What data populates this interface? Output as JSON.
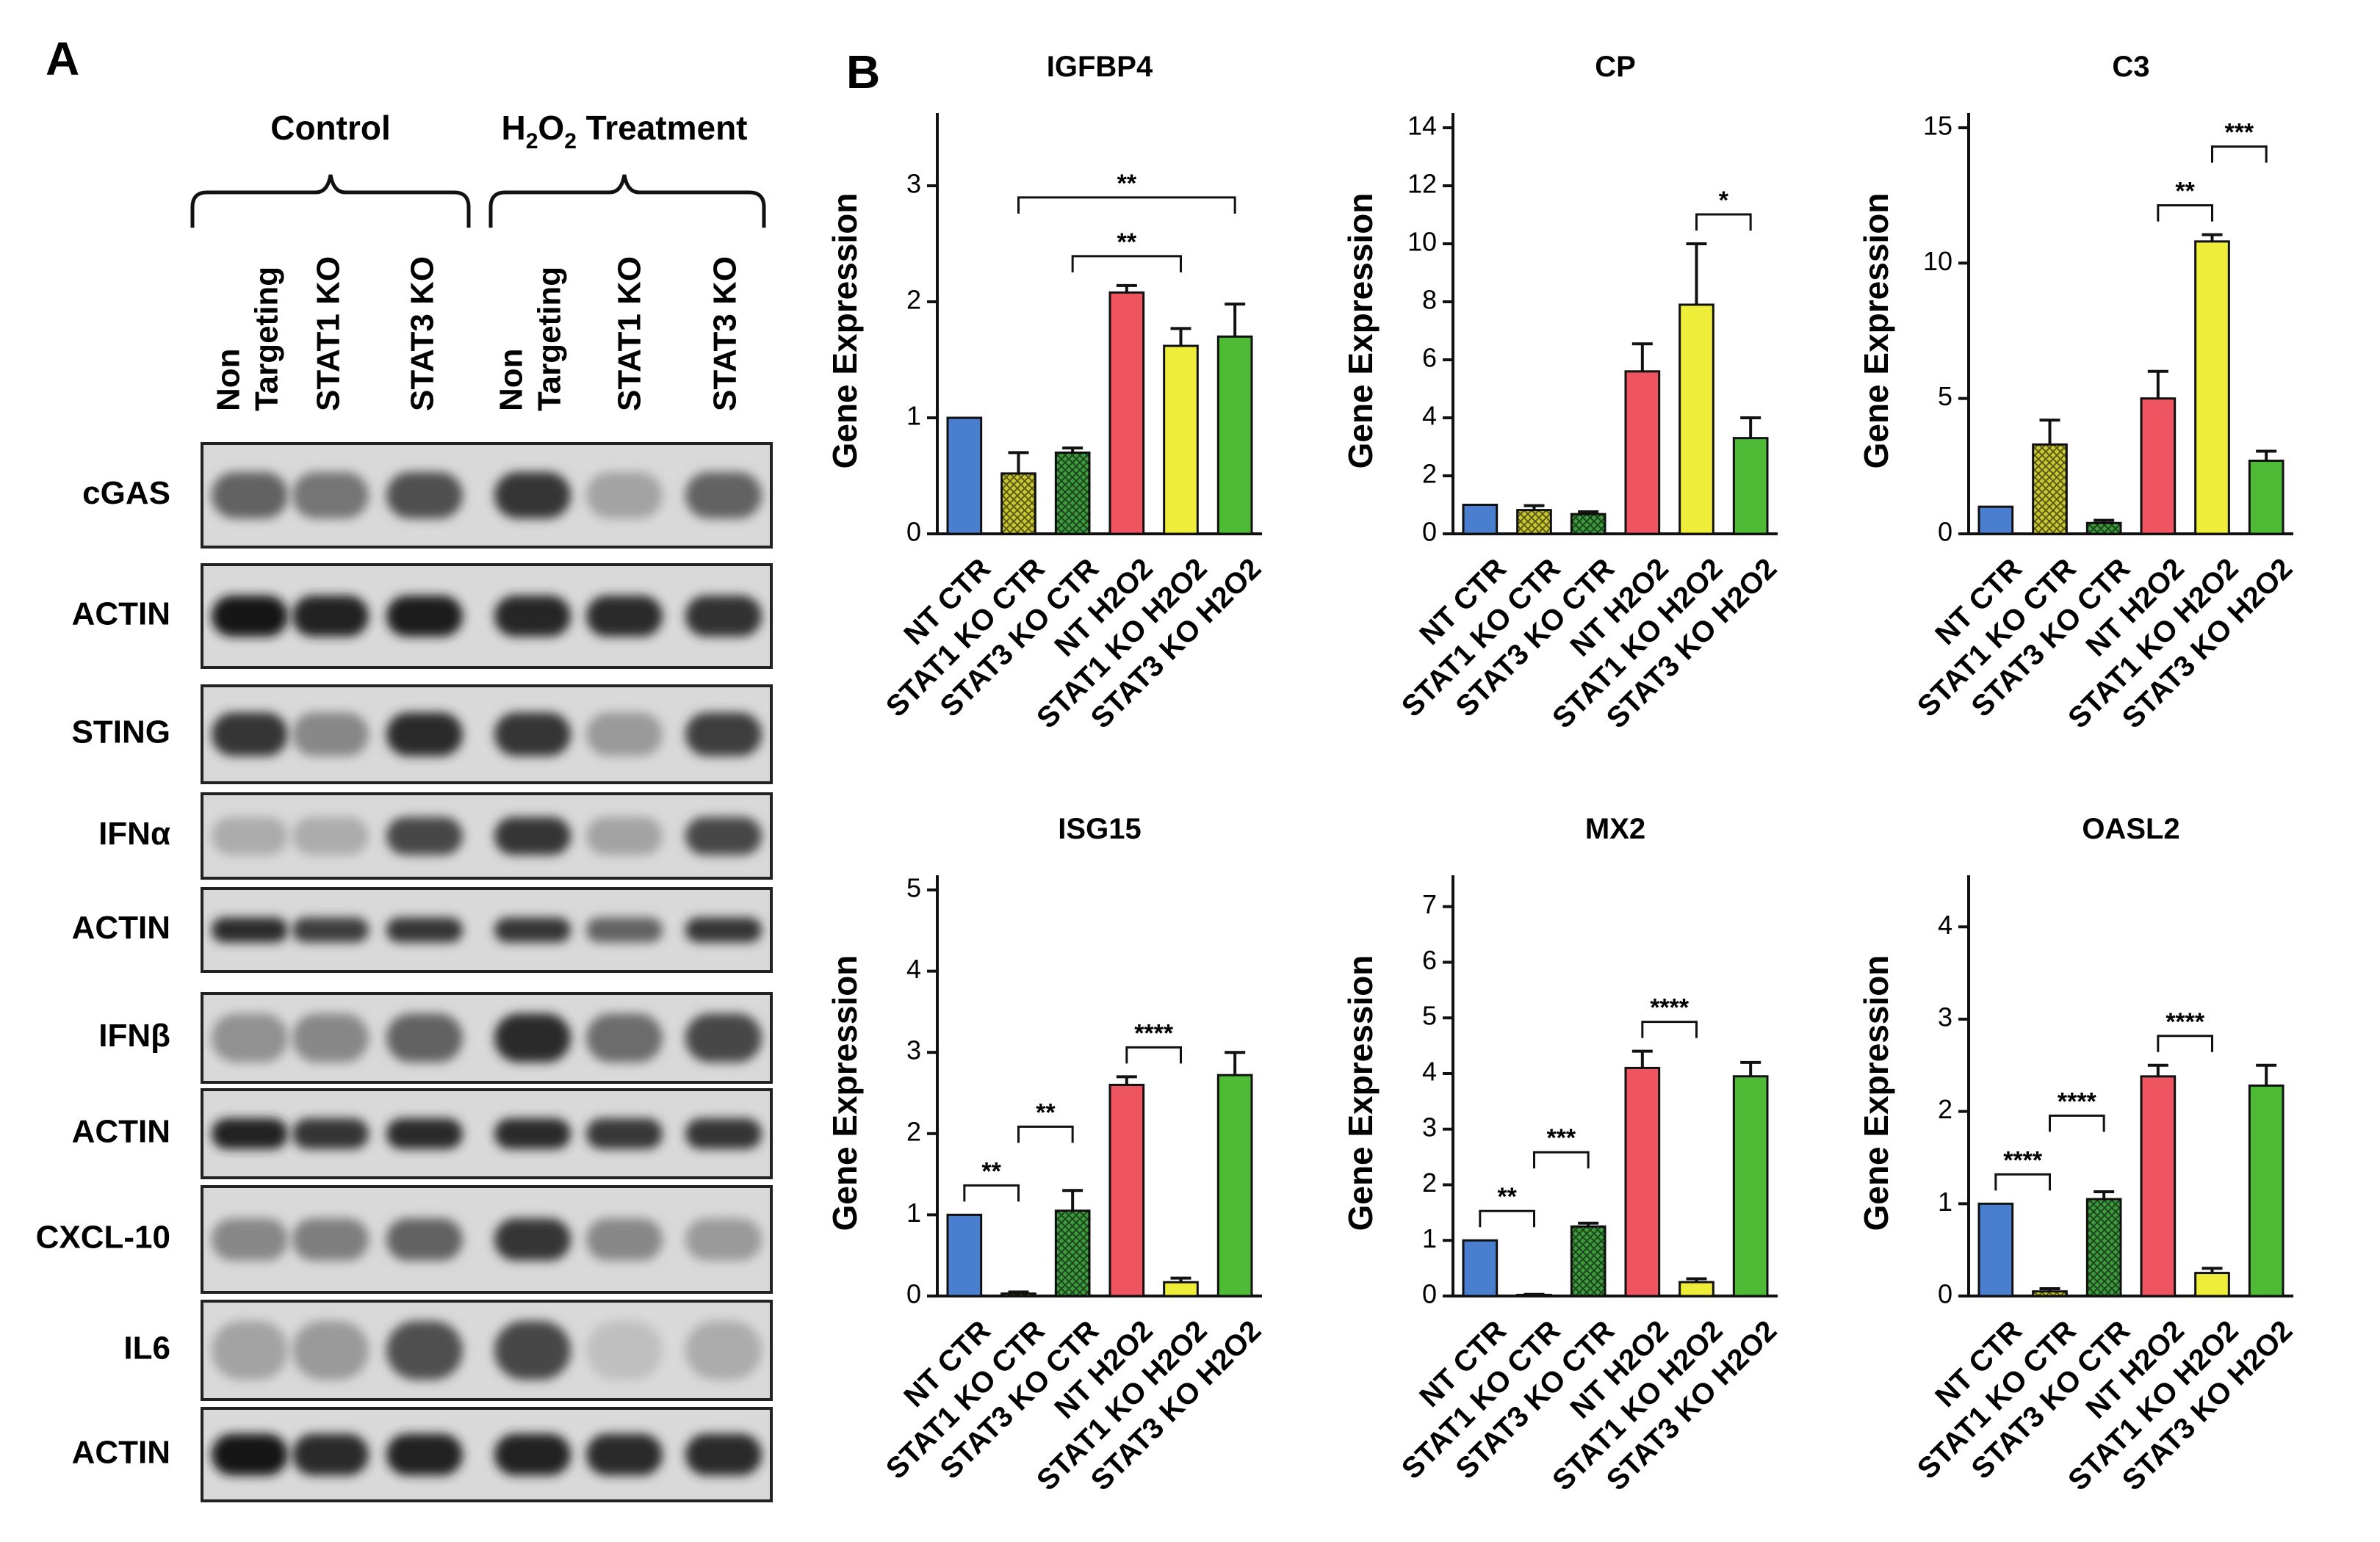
{
  "panel_a": {
    "letter": "A",
    "groups": [
      {
        "label": "Control"
      },
      {
        "label_main": "H",
        "label_sub": "2",
        "label_mid": "O",
        "label_sub2": "2",
        "label_tail": " Treatment"
      }
    ],
    "lanes": [
      [
        "Non",
        "Targeting"
      ],
      [
        "STAT1 KO"
      ],
      [
        "STAT3 KO"
      ],
      [
        "Non",
        "Targeting"
      ],
      [
        "STAT1 KO"
      ],
      [
        "STAT3 KO"
      ]
    ],
    "blots": [
      {
        "label": "cGAS",
        "intensity": [
          0.55,
          0.45,
          0.65,
          0.8,
          0.2,
          0.55
        ],
        "thickness": 0.45
      },
      {
        "label": "ACTIN",
        "intensity": [
          0.95,
          0.9,
          0.92,
          0.88,
          0.85,
          0.82
        ],
        "thickness": 0.4
      },
      {
        "label": "STING",
        "intensity": [
          0.8,
          0.35,
          0.85,
          0.8,
          0.25,
          0.75
        ],
        "thickness": 0.45
      },
      {
        "label": "IFNα",
        "intensity": [
          0.15,
          0.15,
          0.7,
          0.8,
          0.2,
          0.7
        ],
        "thickness": 0.45
      },
      {
        "label": "ACTIN",
        "intensity": [
          0.85,
          0.75,
          0.8,
          0.8,
          0.55,
          0.8
        ],
        "thickness": 0.3
      },
      {
        "label": "IFNβ",
        "intensity": [
          0.3,
          0.35,
          0.55,
          0.85,
          0.5,
          0.7
        ],
        "thickness": 0.55
      },
      {
        "label": "ACTIN",
        "intensity": [
          0.9,
          0.8,
          0.85,
          0.85,
          0.78,
          0.8
        ],
        "thickness": 0.35
      },
      {
        "label": "CXCL-10",
        "intensity": [
          0.35,
          0.4,
          0.55,
          0.8,
          0.35,
          0.25
        ],
        "thickness": 0.4
      },
      {
        "label": "IL6",
        "intensity": [
          0.2,
          0.25,
          0.65,
          0.7,
          0.05,
          0.15
        ],
        "thickness": 0.6
      },
      {
        "label": "ACTIN",
        "intensity": [
          0.95,
          0.85,
          0.9,
          0.9,
          0.85,
          0.85
        ],
        "thickness": 0.45
      }
    ]
  },
  "panel_b": {
    "letter": "B",
    "ylabel": "Gene Expression",
    "categories": [
      "NT CTR",
      "STAT1 KO CTR",
      "STAT3 KO CTR",
      "NT H2O2",
      "STAT1 KO H2O2",
      "STAT3 KO H2O2"
    ],
    "colors": [
      "#4a7fd0",
      "#c9c832",
      "#3e9a3e",
      "#ee5560",
      "#eeee3a",
      "#4fba36"
    ],
    "hatched": [
      false,
      true,
      true,
      false,
      false,
      false
    ],
    "grid": false,
    "legend": "none"
  },
  "chart_data": [
    {
      "type": "bar",
      "title": "IGFBP4",
      "ylabel": "Gene Expression",
      "categories": [
        "NT CTR",
        "STAT1 KO CTR",
        "STAT3 KO CTR",
        "NT H2O2",
        "STAT1 KO H2O2",
        "STAT3 KO H2O2"
      ],
      "values": [
        1.0,
        0.52,
        0.7,
        2.08,
        1.62,
        1.7
      ],
      "errors": [
        0,
        0.18,
        0.04,
        0.06,
        0.15,
        0.28
      ],
      "ylim": [
        0,
        3.5
      ],
      "yticks": [
        0,
        1,
        2,
        3
      ],
      "annotations": [
        {
          "from": 2,
          "to": 4,
          "label": "**"
        },
        {
          "from": 1,
          "to": 5,
          "label": "**"
        }
      ]
    },
    {
      "type": "bar",
      "title": "CP",
      "ylabel": "Gene Expression",
      "categories": [
        "NT CTR",
        "STAT1 KO CTR",
        "STAT3 KO CTR",
        "NT H2O2",
        "STAT1 KO H2O2",
        "STAT3 KO H2O2"
      ],
      "values": [
        1.0,
        0.82,
        0.68,
        5.6,
        7.9,
        3.3
      ],
      "errors": [
        0,
        0.15,
        0.08,
        0.95,
        2.1,
        0.7
      ],
      "ylim": [
        0,
        14
      ],
      "yticks": [
        0,
        2,
        4,
        6,
        8,
        10,
        12,
        14
      ],
      "annotations": [
        {
          "from": 4,
          "to": 5,
          "label": "*"
        }
      ]
    },
    {
      "type": "bar",
      "title": "C3",
      "ylabel": "Gene Expression",
      "categories": [
        "NT CTR",
        "STAT1 KO CTR",
        "STAT3 KO CTR",
        "NT H2O2",
        "STAT1 KO H2O2",
        "STAT3 KO H2O2"
      ],
      "values": [
        1.0,
        3.3,
        0.4,
        5.0,
        10.8,
        2.7
      ],
      "errors": [
        0,
        0.9,
        0.1,
        1.0,
        0.25,
        0.35
      ],
      "ylim": [
        0,
        15
      ],
      "yticks": [
        0,
        5,
        10,
        15
      ],
      "annotations": [
        {
          "from": 3,
          "to": 4,
          "label": "**"
        },
        {
          "from": 4,
          "to": 5,
          "label": "***"
        }
      ]
    },
    {
      "type": "bar",
      "title": "ISG15",
      "ylabel": "Gene Expression",
      "categories": [
        "NT CTR",
        "STAT1 KO CTR",
        "STAT3 KO CTR",
        "NT H2O2",
        "STAT1 KO H2O2",
        "STAT3 KO H2O2"
      ],
      "values": [
        1.0,
        0.03,
        1.05,
        2.6,
        0.17,
        2.72
      ],
      "errors": [
        0,
        0.02,
        0.25,
        0.1,
        0.05,
        0.28
      ],
      "ylim": [
        0,
        5
      ],
      "yticks": [
        0,
        1,
        2,
        3,
        4,
        5
      ],
      "annotations": [
        {
          "from": 0,
          "to": 1,
          "label": "**"
        },
        {
          "from": 1,
          "to": 2,
          "label": "**"
        },
        {
          "from": 3,
          "to": 4,
          "label": "****"
        }
      ]
    },
    {
      "type": "bar",
      "title": "MX2",
      "ylabel": "Gene Expression",
      "categories": [
        "NT CTR",
        "STAT1 KO CTR",
        "STAT3 KO CTR",
        "NT H2O2",
        "STAT1 KO H2O2",
        "STAT3 KO H2O2"
      ],
      "values": [
        1.0,
        0.02,
        1.25,
        4.1,
        0.25,
        3.95
      ],
      "errors": [
        0,
        0.01,
        0.06,
        0.3,
        0.06,
        0.25
      ],
      "ylim": [
        0,
        7.3
      ],
      "yticks": [
        0,
        1,
        2,
        3,
        4,
        5,
        6,
        7
      ],
      "annotations": [
        {
          "from": 0,
          "to": 1,
          "label": "**"
        },
        {
          "from": 1,
          "to": 2,
          "label": "***"
        },
        {
          "from": 3,
          "to": 4,
          "label": "****"
        }
      ]
    },
    {
      "type": "bar",
      "title": "OASL2",
      "ylabel": "Gene Expression",
      "categories": [
        "NT CTR",
        "STAT1 KO CTR",
        "STAT3 KO CTR",
        "NT H2O2",
        "STAT1 KO H2O2",
        "STAT3 KO H2O2"
      ],
      "values": [
        1.0,
        0.05,
        1.05,
        2.38,
        0.25,
        2.28
      ],
      "errors": [
        0,
        0.03,
        0.08,
        0.12,
        0.05,
        0.22
      ],
      "ylim": [
        0,
        4.4
      ],
      "yticks": [
        0,
        1,
        2,
        3,
        4
      ],
      "annotations": [
        {
          "from": 0,
          "to": 1,
          "label": "****"
        },
        {
          "from": 1,
          "to": 2,
          "label": "****"
        },
        {
          "from": 3,
          "to": 4,
          "label": "****"
        }
      ]
    }
  ]
}
